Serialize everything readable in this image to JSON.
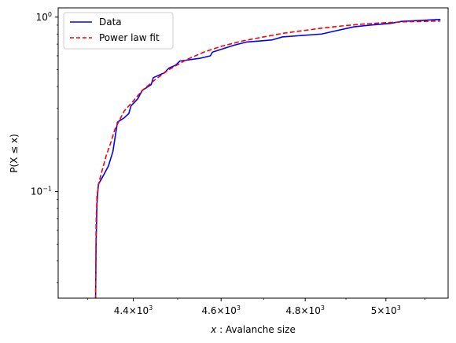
{
  "chart_data": {
    "type": "line",
    "x_scale": "log",
    "y_scale": "log",
    "xlim": [
      4236,
      5160
    ],
    "ylim": [
      0.0245,
      1.13
    ],
    "x_ticks": [
      {
        "value": 4400,
        "mantissa": "4.4",
        "base": "×10",
        "exp": "3"
      },
      {
        "value": 4600,
        "mantissa": "4.6",
        "base": "×10",
        "exp": "3"
      },
      {
        "value": 4800,
        "mantissa": "4.8",
        "base": "×10",
        "exp": "3"
      },
      {
        "value": 5000,
        "mantissa": "5",
        "base": "×10",
        "exp": "3"
      }
    ],
    "y_ticks": [
      {
        "value": 1.0,
        "base": "10",
        "exp": "0"
      },
      {
        "value": 0.1,
        "base": "10",
        "exp": "−1"
      }
    ],
    "xlabel": {
      "symbol": "x",
      "rest": " :  Avalanche size"
    },
    "ylabel": "P(X ≤ x)",
    "grid": false,
    "legend_position": "top-left",
    "series": [
      {
        "name": "Data",
        "color": "#0000ff",
        "style": "solid",
        "points": [
          [
            4317,
            0.024
          ],
          [
            4318,
            0.05
          ],
          [
            4320,
            0.085
          ],
          [
            4323,
            0.11
          ],
          [
            4335,
            0.125
          ],
          [
            4345,
            0.14
          ],
          [
            4355,
            0.17
          ],
          [
            4365,
            0.25
          ],
          [
            4380,
            0.265
          ],
          [
            4390,
            0.28
          ],
          [
            4395,
            0.31
          ],
          [
            4410,
            0.34
          ],
          [
            4420,
            0.38
          ],
          [
            4440,
            0.41
          ],
          [
            4445,
            0.45
          ],
          [
            4470,
            0.48
          ],
          [
            4480,
            0.51
          ],
          [
            4495,
            0.53
          ],
          [
            4505,
            0.56
          ],
          [
            4550,
            0.58
          ],
          [
            4575,
            0.6
          ],
          [
            4580,
            0.63
          ],
          [
            4630,
            0.69
          ],
          [
            4660,
            0.72
          ],
          [
            4720,
            0.74
          ],
          [
            4745,
            0.77
          ],
          [
            4840,
            0.8
          ],
          [
            4870,
            0.83
          ],
          [
            4900,
            0.86
          ],
          [
            4920,
            0.88
          ],
          [
            4960,
            0.9
          ],
          [
            5010,
            0.92
          ],
          [
            5040,
            0.945
          ],
          [
            5140,
            0.97
          ]
        ]
      },
      {
        "name": "Power law fit",
        "color": "#ff0000",
        "style": "dashed",
        "points": [
          [
            4317,
            0.024
          ],
          [
            4318,
            0.065
          ],
          [
            4320,
            0.095
          ],
          [
            4325,
            0.115
          ],
          [
            4340,
            0.16
          ],
          [
            4350,
            0.19
          ],
          [
            4360,
            0.23
          ],
          [
            4380,
            0.29
          ],
          [
            4400,
            0.33
          ],
          [
            4420,
            0.38
          ],
          [
            4450,
            0.44
          ],
          [
            4480,
            0.5
          ],
          [
            4520,
            0.57
          ],
          [
            4560,
            0.63
          ],
          [
            4600,
            0.68
          ],
          [
            4650,
            0.73
          ],
          [
            4700,
            0.77
          ],
          [
            4750,
            0.81
          ],
          [
            4800,
            0.84
          ],
          [
            4850,
            0.87
          ],
          [
            4900,
            0.895
          ],
          [
            4950,
            0.915
          ],
          [
            5000,
            0.93
          ],
          [
            5050,
            0.94
          ],
          [
            5140,
            0.95
          ]
        ]
      }
    ]
  }
}
